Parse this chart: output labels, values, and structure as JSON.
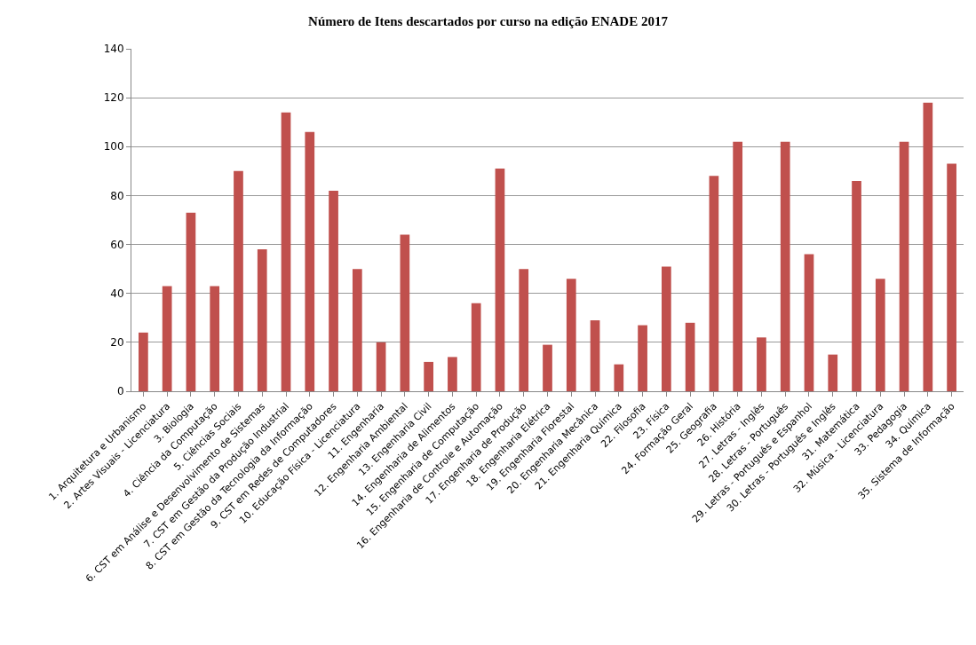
{
  "chart_data": {
    "type": "bar",
    "title": "Número de Itens descartados por curso na edição ENADE 2017",
    "categories": [
      "1. Arquitetura e Urbanismo",
      "2. Artes Visuais - Licenciatura",
      "3. Biologia",
      "4. Ciência da Computação",
      "5. Ciências Sociais",
      "6. CST em Análise e Desenvolvimento de Sistemas",
      "7. CST em Gestão da Produção Industrial",
      "8. CST em Gestão da Tecnologia da Informação",
      "9. CST em Redes de Computadores",
      "10. Educação Física - Licenciatura",
      "11. Engenharia",
      "12. Engenharia Ambiental",
      "13. Engenharia Civil",
      "14. Engenharia de Alimentos",
      "15. Engenharia de Computação",
      "16. Engenharia de Controle e Automação",
      "17. Engenharia de Produção",
      "18. Engenharia Elétrica",
      "19. Engenharia Florestal",
      "20. Engenharia Mecânica",
      "21. Engenharia Química",
      "22. Filosofia",
      "23. Física",
      "24. Formação Geral",
      "25. Geografia",
      "26. História",
      "27. Letras - Inglês",
      "28. Letras - Português",
      "29. Letras - Português e Espanhol",
      "30. Letras - Português e Inglês",
      "31. Matemática",
      "32. Música - Licenciatura",
      "33. Pedagogia",
      "34. Química",
      "35. Sistema de Informação"
    ],
    "values": [
      24,
      43,
      73,
      43,
      90,
      58,
      114,
      106,
      82,
      50,
      20,
      64,
      12,
      14,
      36,
      91,
      50,
      19,
      46,
      29,
      11,
      27,
      51,
      28,
      88,
      102,
      22,
      102,
      56,
      15,
      86,
      46,
      102,
      118,
      93
    ],
    "color": "#c0504d",
    "ylim": [
      0,
      140
    ],
    "yticks": [
      0,
      20,
      40,
      60,
      80,
      100,
      120,
      140
    ],
    "grid": "y",
    "legend": false
  }
}
